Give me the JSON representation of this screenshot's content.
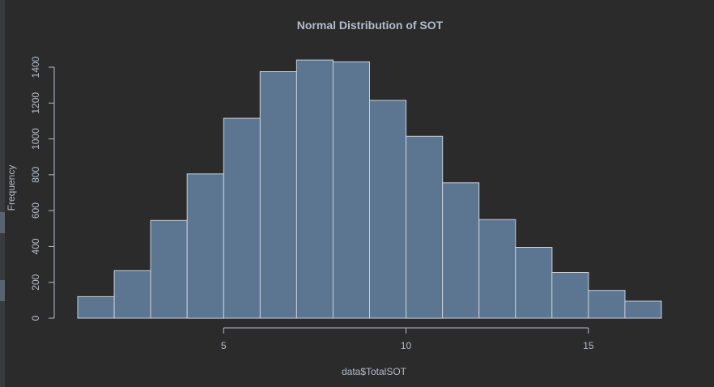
{
  "chart_data": {
    "type": "bar",
    "title": "Normal Distribution of SOT",
    "xlabel": "data$TotalSOT",
    "ylabel": "Frequency",
    "bins": [
      {
        "start": 1,
        "end": 2,
        "count": 120
      },
      {
        "start": 2,
        "end": 3,
        "count": 265
      },
      {
        "start": 3,
        "end": 4,
        "count": 545
      },
      {
        "start": 4,
        "end": 5,
        "count": 805
      },
      {
        "start": 5,
        "end": 6,
        "count": 1115
      },
      {
        "start": 6,
        "end": 7,
        "count": 1375
      },
      {
        "start": 7,
        "end": 8,
        "count": 1440
      },
      {
        "start": 8,
        "end": 9,
        "count": 1430
      },
      {
        "start": 9,
        "end": 10,
        "count": 1215
      },
      {
        "start": 10,
        "end": 11,
        "count": 1015
      },
      {
        "start": 11,
        "end": 12,
        "count": 755
      },
      {
        "start": 12,
        "end": 13,
        "count": 550
      },
      {
        "start": 13,
        "end": 14,
        "count": 395
      },
      {
        "start": 14,
        "end": 15,
        "count": 255
      },
      {
        "start": 15,
        "end": 16,
        "count": 155
      },
      {
        "start": 16,
        "end": 17,
        "count": 95
      }
    ],
    "xlim": [
      1,
      17
    ],
    "ylim": [
      0,
      1400
    ],
    "x_ticks": [
      5,
      10,
      15
    ],
    "y_ticks": [
      0,
      200,
      400,
      600,
      800,
      1000,
      1200,
      1400
    ],
    "colors": {
      "background": "#2b2b2c",
      "bar_fill": "#5c7590",
      "bar_border": "#c9d2dc",
      "text": "#b3bcc8"
    }
  }
}
